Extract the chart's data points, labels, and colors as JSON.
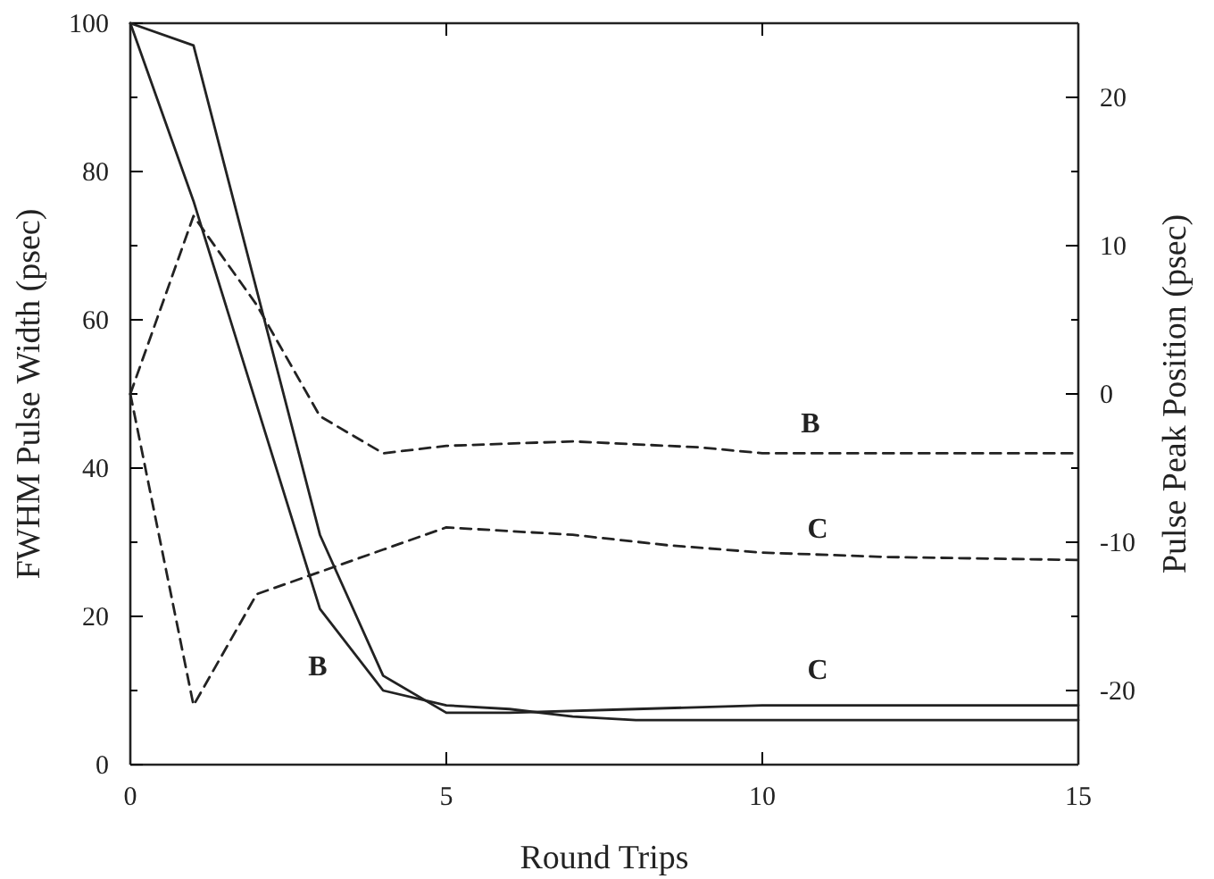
{
  "chart_data": {
    "type": "line",
    "xlabel": "Round Trips",
    "ylabel": "FWHM Pulse Width (psec)",
    "y2label": "Pulse Peak Position (psec)",
    "xlim": [
      0,
      15
    ],
    "xticks": [
      0,
      5,
      10,
      15
    ],
    "ylim": [
      0,
      100
    ],
    "yticks": [
      0,
      {
        "value": 10,
        "label": null
      },
      20,
      {
        "value": 30,
        "label": null
      },
      40,
      {
        "value": 50,
        "label": null
      },
      60,
      {
        "value": 70,
        "label": null
      },
      80,
      {
        "value": 90,
        "label": null
      },
      100
    ],
    "y2lim": [
      -25,
      25
    ],
    "y2ticks": [
      -20,
      {
        "value": -15,
        "label": null
      },
      -10,
      {
        "value": -5,
        "label": null
      },
      0,
      {
        "value": 5,
        "label": null
      },
      10,
      {
        "value": 15,
        "label": null
      },
      20
    ],
    "grid": false,
    "marker": "none",
    "series": [
      {
        "color": "#222222",
        "line_style": "solid",
        "x": [
          0,
          1,
          3,
          4,
          5,
          6,
          7,
          8,
          10,
          12,
          15
        ],
        "values": [
          100,
          76,
          21,
          10,
          8,
          7.5,
          6.5,
          6,
          6,
          6,
          6
        ]
      },
      {
        "color": "#222222",
        "line_style": "solid",
        "x": [
          0,
          1,
          3,
          4,
          5,
          6,
          8,
          10,
          15
        ],
        "values": [
          100,
          97,
          31,
          12,
          7,
          7,
          7.5,
          8,
          8
        ]
      },
      {
        "color": "#222222",
        "line_style": "dashed",
        "axis": "y2",
        "x": [
          0,
          1,
          2,
          3,
          4,
          5,
          7,
          9,
          10,
          15
        ],
        "values": [
          0,
          12,
          6,
          -1.5,
          -4,
          -3.5,
          -3.2,
          -3.6,
          -4,
          -4
        ]
      },
      {
        "color": "#222222",
        "line_style": "dashed",
        "axis": "y2",
        "x": [
          0,
          1,
          2,
          3,
          4,
          5,
          7,
          8.5,
          10,
          12,
          15
        ],
        "values": [
          0,
          -21,
          -13.5,
          -12,
          -10.5,
          -9,
          -9.5,
          -10.2,
          -10.7,
          -11,
          -11.2
        ]
      }
    ],
    "annotations": [
      "B",
      "C",
      "C",
      "B"
    ]
  }
}
